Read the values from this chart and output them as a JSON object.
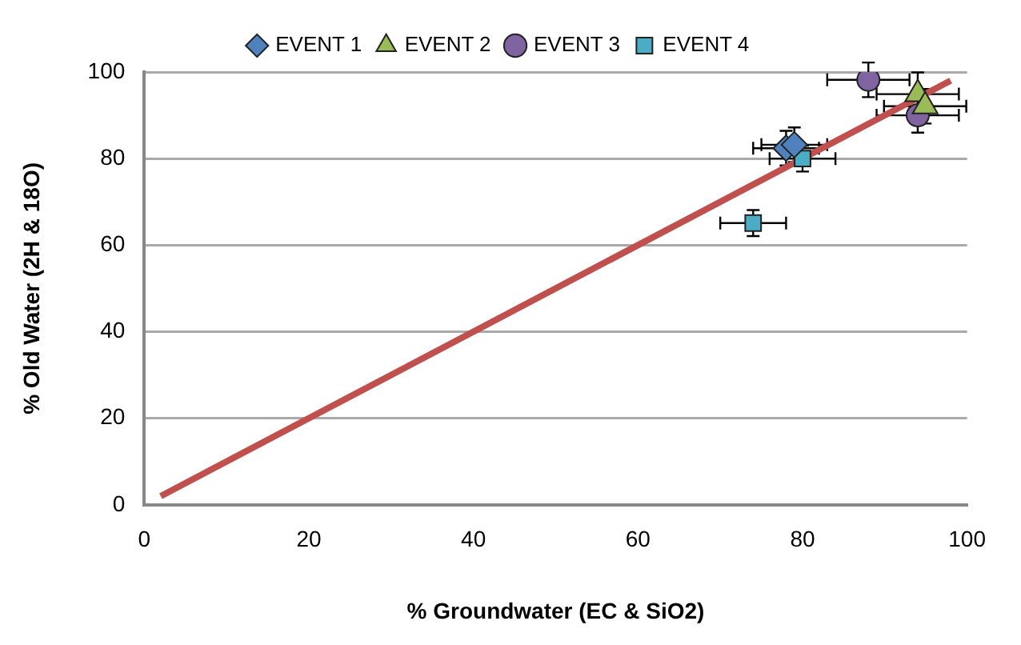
{
  "chart_data": {
    "type": "scatter",
    "xlabel": "% Groundwater (EC & SiO2)",
    "ylabel": "% Old Water (2H & 18O)",
    "xlim": [
      0,
      100
    ],
    "xticks": [
      0,
      20,
      40,
      60,
      80,
      100
    ],
    "ylim": [
      0,
      100
    ],
    "yticks": [
      0,
      20,
      40,
      60,
      80,
      100
    ],
    "grid": "y",
    "legend": "top",
    "series": [
      {
        "name": "EVENT 1",
        "color": "#4f81bd",
        "marker": "diamond",
        "x": [
          78,
          79
        ],
        "values": [
          82.4,
          83.2
        ],
        "errors": [
          4,
          4
        ],
        "xerrors": [
          4,
          4
        ]
      },
      {
        "name": "EVENT 2",
        "color": "#9bbb59",
        "marker": "triangle",
        "x": [
          94,
          94.9
        ],
        "values": [
          94.9,
          92.1
        ],
        "errors": [
          5,
          4
        ],
        "xerrors": [
          5,
          5
        ]
      },
      {
        "name": "EVENT 3",
        "color": "#8064a2",
        "marker": "circle",
        "x": [
          88,
          94
        ],
        "values": [
          98.2,
          90
        ],
        "errors": [
          4,
          4
        ],
        "xerrors": [
          5,
          5
        ]
      },
      {
        "name": "EVENT 4",
        "color": "#4bacc6",
        "marker": "square",
        "x": [
          80,
          74
        ],
        "values": [
          80,
          65.1
        ],
        "errors": [
          3,
          3
        ],
        "xerrors": [
          4,
          4
        ]
      },
      {
        "type": "line",
        "color": "#c0504d",
        "marker": "none",
        "x": [
          2,
          98
        ],
        "values": [
          2,
          98
        ]
      }
    ]
  }
}
